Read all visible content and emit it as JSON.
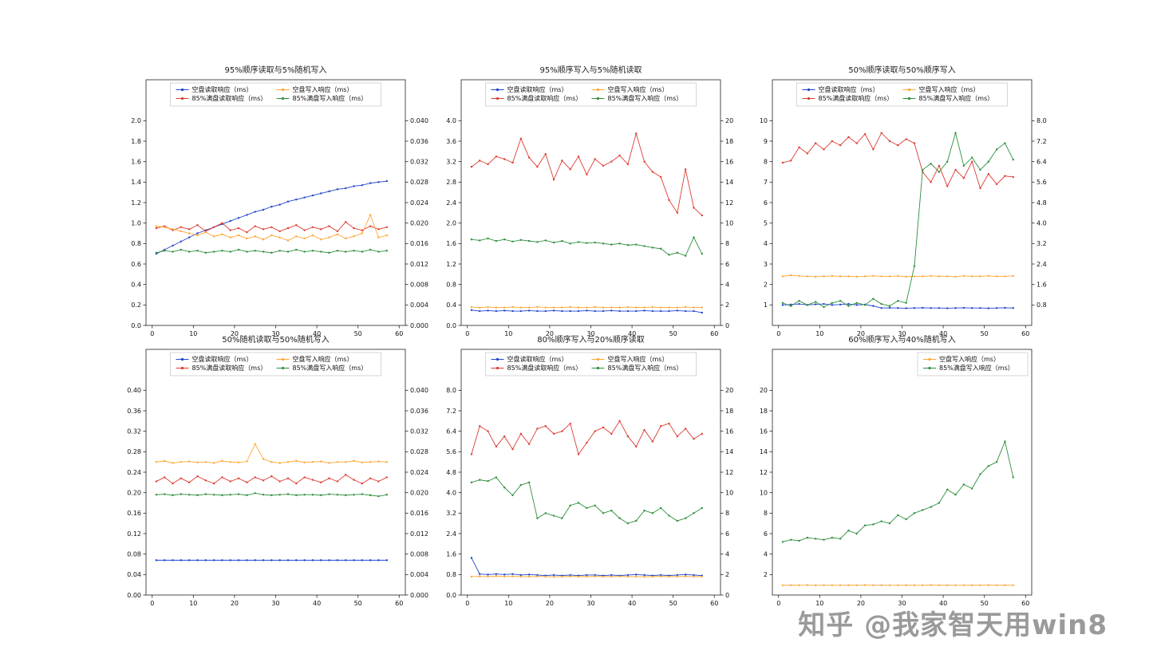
{
  "watermark": "知乎 @我家智天用win8",
  "colors": {
    "empty_read": "#2244cc",
    "empty_write": "#ffa632",
    "full_read": "#dd3c32",
    "full_write": "#2f8f3c",
    "axis": "#222222",
    "legend_border": "#cccccc"
  },
  "x_values": [
    1,
    3,
    5,
    7,
    9,
    11,
    13,
    15,
    17,
    19,
    21,
    23,
    25,
    27,
    29,
    31,
    33,
    35,
    37,
    39,
    41,
    43,
    45,
    47,
    49,
    51,
    53,
    55,
    57
  ],
  "xlim": [
    -1.5,
    61.5
  ],
  "xticks": [
    "0",
    "10",
    "20",
    "30",
    "40",
    "50",
    "60"
  ],
  "chart_data": [
    {
      "type": "line",
      "title": "95%顺序读取与5%随机写入",
      "x_range": [
        0,
        60
      ],
      "left_ticks": [
        "0.0",
        "0.2",
        "0.4",
        "0.6",
        "0.8",
        "1.0",
        "1.2",
        "1.4",
        "1.6",
        "1.8",
        "2.0"
      ],
      "left_max": 2.4,
      "right_ticks": [
        "0.000",
        "0.004",
        "0.008",
        "0.012",
        "0.016",
        "0.020",
        "0.024",
        "0.028",
        "0.032",
        "0.036",
        "0.040"
      ],
      "right_max": 0.048,
      "legend_loc": "top-center",
      "legend_columns": 2,
      "series": [
        {
          "name": "空盘读取响应（ms）",
          "color_key": "empty_read",
          "values": [
            0.7,
            0.74,
            0.78,
            0.82,
            0.86,
            0.9,
            0.93,
            0.96,
            0.99,
            1.02,
            1.05,
            1.08,
            1.11,
            1.13,
            1.16,
            1.18,
            1.21,
            1.23,
            1.25,
            1.27,
            1.29,
            1.31,
            1.33,
            1.34,
            1.36,
            1.37,
            1.39,
            1.4,
            1.41
          ]
        },
        {
          "name": "85%满盘读取响应（ms）",
          "color_key": "full_read",
          "values": [
            0.95,
            0.97,
            0.93,
            0.96,
            0.94,
            0.98,
            0.92,
            0.96,
            1.0,
            0.93,
            0.95,
            0.91,
            0.97,
            0.94,
            0.96,
            0.92,
            0.95,
            0.98,
            0.93,
            0.96,
            0.94,
            0.97,
            0.92,
            1.01,
            0.95,
            0.93,
            0.97,
            0.94,
            0.96
          ]
        },
        {
          "name": "空盘写入响应（ms）",
          "color_key": "empty_write",
          "values": [
            0.97,
            0.96,
            0.94,
            0.92,
            0.9,
            0.88,
            0.91,
            0.87,
            0.89,
            0.86,
            0.88,
            0.85,
            0.87,
            0.84,
            0.88,
            0.86,
            0.83,
            0.87,
            0.85,
            0.88,
            0.84,
            0.86,
            0.89,
            0.85,
            0.87,
            0.9,
            1.08,
            0.86,
            0.88
          ]
        },
        {
          "name": "85%满盘写入响应（ms）",
          "color_key": "full_write",
          "values": [
            0.71,
            0.73,
            0.72,
            0.74,
            0.72,
            0.73,
            0.71,
            0.72,
            0.73,
            0.72,
            0.74,
            0.72,
            0.73,
            0.72,
            0.71,
            0.73,
            0.72,
            0.74,
            0.72,
            0.73,
            0.72,
            0.71,
            0.73,
            0.72,
            0.73,
            0.72,
            0.74,
            0.72,
            0.73
          ]
        }
      ]
    },
    {
      "type": "line",
      "title": "95%顺序写入与5%随机读取",
      "x_range": [
        0,
        60
      ],
      "left_ticks": [
        "0.0",
        "0.4",
        "0.8",
        "1.2",
        "1.6",
        "2.0",
        "2.4",
        "2.8",
        "3.2",
        "3.6",
        "4.0"
      ],
      "left_max": 4.8,
      "right_ticks": [
        "0",
        "2",
        "4",
        "6",
        "8",
        "10",
        "12",
        "14",
        "16",
        "18",
        "20"
      ],
      "right_max": 24,
      "legend_loc": "top-center",
      "legend_columns": 2,
      "series": [
        {
          "name": "空盘读取响应（ms）",
          "color_key": "empty_read",
          "values": [
            0.3,
            0.28,
            0.29,
            0.28,
            0.29,
            0.28,
            0.28,
            0.29,
            0.28,
            0.28,
            0.29,
            0.28,
            0.28,
            0.28,
            0.29,
            0.28,
            0.28,
            0.29,
            0.28,
            0.28,
            0.28,
            0.29,
            0.28,
            0.28,
            0.28,
            0.29,
            0.28,
            0.28,
            0.25
          ]
        },
        {
          "name": "85%满盘读取响应（ms）",
          "color_key": "full_read",
          "values": [
            3.1,
            3.22,
            3.15,
            3.3,
            3.25,
            3.18,
            3.65,
            3.28,
            3.1,
            3.35,
            2.85,
            3.22,
            3.05,
            3.3,
            2.95,
            3.25,
            3.12,
            3.2,
            3.32,
            3.15,
            3.75,
            3.2,
            3.0,
            2.9,
            2.45,
            2.2,
            3.05,
            2.3,
            2.15
          ]
        },
        {
          "name": "空盘写入响应（ms）",
          "color_key": "empty_write",
          "values": [
            0.36,
            0.35,
            0.36,
            0.35,
            0.35,
            0.36,
            0.35,
            0.35,
            0.36,
            0.35,
            0.35,
            0.35,
            0.36,
            0.35,
            0.35,
            0.36,
            0.35,
            0.35,
            0.35,
            0.36,
            0.35,
            0.35,
            0.36,
            0.35,
            0.35,
            0.35,
            0.36,
            0.35,
            0.35
          ]
        },
        {
          "name": "85%满盘写入响应（ms）",
          "color_key": "full_write",
          "values": [
            1.68,
            1.66,
            1.7,
            1.65,
            1.68,
            1.64,
            1.67,
            1.65,
            1.63,
            1.66,
            1.62,
            1.65,
            1.6,
            1.63,
            1.61,
            1.62,
            1.6,
            1.58,
            1.6,
            1.57,
            1.58,
            1.55,
            1.52,
            1.5,
            1.38,
            1.42,
            1.36,
            1.72,
            1.4
          ]
        }
      ]
    },
    {
      "type": "line",
      "title": "50%顺序读取与50%顺序写入",
      "x_range": [
        0,
        60
      ],
      "left_ticks": [
        "1",
        "2",
        "3",
        "4",
        "5",
        "6",
        "7",
        "8",
        "9",
        "10"
      ],
      "left_max": 12,
      "right_ticks": [
        "0.8",
        "1.6",
        "2.4",
        "3.2",
        "4.0",
        "4.8",
        "5.6",
        "6.4",
        "7.2",
        "8.0"
      ],
      "right_max": 9.6,
      "legend_loc": "top-center",
      "legend_columns": 2,
      "series": [
        {
          "name": "空盘读取响应（ms）",
          "color_key": "empty_read",
          "values": [
            1.0,
            1.02,
            1.05,
            1.0,
            1.03,
            1.05,
            1.0,
            1.02,
            1.05,
            1.0,
            1.02,
            0.95,
            0.85,
            0.86,
            0.85,
            0.84,
            0.85,
            0.86,
            0.85,
            0.85,
            0.84,
            0.85,
            0.86,
            0.85,
            0.85,
            0.84,
            0.85,
            0.86,
            0.85
          ]
        },
        {
          "name": "85%满盘读取响应（ms）",
          "color_key": "full_read",
          "values": [
            7.95,
            8.05,
            8.7,
            8.4,
            8.9,
            8.6,
            9.0,
            8.8,
            9.2,
            8.9,
            9.35,
            8.6,
            9.4,
            9.0,
            8.8,
            9.1,
            8.9,
            7.5,
            7.0,
            7.8,
            6.8,
            7.6,
            7.2,
            8.0,
            6.7,
            7.4,
            6.9,
            7.3,
            7.25
          ]
        },
        {
          "name": "空盘写入响应（ms）",
          "color_key": "empty_write",
          "values": [
            2.4,
            2.45,
            2.42,
            2.4,
            2.38,
            2.4,
            2.42,
            2.4,
            2.4,
            2.38,
            2.4,
            2.42,
            2.4,
            2.4,
            2.42,
            2.38,
            2.4,
            2.4,
            2.42,
            2.4,
            2.4,
            2.38,
            2.42,
            2.4,
            2.4,
            2.42,
            2.4,
            2.4,
            2.42
          ]
        },
        {
          "name": "85%满盘写入响应（ms）",
          "color_key": "full_write",
          "values": [
            1.1,
            0.95,
            1.2,
            1.0,
            1.15,
            0.9,
            1.1,
            1.2,
            0.95,
            1.1,
            1.0,
            1.3,
            1.05,
            0.95,
            1.2,
            1.1,
            2.9,
            7.6,
            7.9,
            7.5,
            8.0,
            9.4,
            7.8,
            8.2,
            7.6,
            8.0,
            8.6,
            8.9,
            8.1
          ]
        }
      ]
    },
    {
      "type": "line",
      "title": "50%随机读取与50%随机写入",
      "x_range": [
        0,
        60
      ],
      "left_ticks": [
        "0.00",
        "0.04",
        "0.08",
        "0.12",
        "0.16",
        "0.20",
        "0.24",
        "0.28",
        "0.32",
        "0.36",
        "0.40"
      ],
      "left_max": 0.48,
      "right_ticks": [
        "0.000",
        "0.004",
        "0.008",
        "0.012",
        "0.016",
        "0.020",
        "0.024",
        "0.028",
        "0.032",
        "0.036",
        "0.040"
      ],
      "right_max": 0.048,
      "legend_loc": "top-center",
      "legend_columns": 2,
      "series": [
        {
          "name": "空盘读取响应（ms）",
          "color_key": "empty_read",
          "values": [
            0.068,
            0.068,
            0.068,
            0.068,
            0.068,
            0.068,
            0.068,
            0.068,
            0.068,
            0.068,
            0.068,
            0.068,
            0.068,
            0.068,
            0.068,
            0.068,
            0.068,
            0.068,
            0.068,
            0.068,
            0.068,
            0.068,
            0.068,
            0.068,
            0.068,
            0.068,
            0.068,
            0.068,
            0.068
          ]
        },
        {
          "name": "85%满盘读取响应（ms）",
          "color_key": "full_read",
          "values": [
            0.222,
            0.23,
            0.218,
            0.228,
            0.22,
            0.232,
            0.224,
            0.218,
            0.23,
            0.222,
            0.228,
            0.22,
            0.23,
            0.224,
            0.232,
            0.222,
            0.228,
            0.218,
            0.23,
            0.225,
            0.22,
            0.228,
            0.222,
            0.235,
            0.225,
            0.218,
            0.228,
            0.222,
            0.23
          ]
        },
        {
          "name": "空盘写入响应（ms）",
          "color_key": "empty_write",
          "values": [
            0.26,
            0.262,
            0.258,
            0.26,
            0.261,
            0.259,
            0.26,
            0.258,
            0.262,
            0.26,
            0.259,
            0.261,
            0.295,
            0.266,
            0.26,
            0.258,
            0.26,
            0.262,
            0.259,
            0.26,
            0.261,
            0.258,
            0.26,
            0.26,
            0.262,
            0.259,
            0.26,
            0.261,
            0.26
          ]
        },
        {
          "name": "85%满盘写入响应（ms）",
          "color_key": "full_write",
          "values": [
            0.196,
            0.197,
            0.195,
            0.197,
            0.196,
            0.195,
            0.197,
            0.196,
            0.195,
            0.196,
            0.197,
            0.195,
            0.199,
            0.196,
            0.195,
            0.196,
            0.197,
            0.195,
            0.196,
            0.196,
            0.195,
            0.197,
            0.196,
            0.195,
            0.196,
            0.197,
            0.195,
            0.193,
            0.196
          ]
        }
      ]
    },
    {
      "type": "line",
      "title": "80%顺序写入与20%顺序读取",
      "x_range": [
        0,
        60
      ],
      "left_ticks": [
        "0.0",
        "0.8",
        "1.6",
        "2.4",
        "3.2",
        "4.0",
        "4.8",
        "5.6",
        "6.4",
        "7.2",
        "8.0"
      ],
      "left_max": 9.6,
      "right_ticks": [
        "0",
        "2",
        "4",
        "6",
        "8",
        "10",
        "12",
        "14",
        "16",
        "18",
        "20"
      ],
      "right_max": 24,
      "legend_loc": "top-center",
      "legend_columns": 2,
      "series": [
        {
          "name": "空盘读取响应（ms）",
          "color_key": "empty_read",
          "values": [
            1.45,
            0.82,
            0.8,
            0.82,
            0.8,
            0.82,
            0.78,
            0.8,
            0.78,
            0.76,
            0.78,
            0.76,
            0.78,
            0.76,
            0.78,
            0.78,
            0.76,
            0.78,
            0.76,
            0.78,
            0.8,
            0.78,
            0.76,
            0.78,
            0.76,
            0.78,
            0.8,
            0.78,
            0.76
          ]
        },
        {
          "name": "85%满盘读取响应（ms）",
          "color_key": "full_read",
          "values": [
            5.5,
            6.6,
            6.4,
            5.8,
            6.2,
            5.7,
            6.3,
            5.9,
            6.5,
            6.6,
            6.3,
            6.4,
            6.7,
            5.5,
            5.95,
            6.4,
            6.55,
            6.3,
            6.8,
            6.2,
            5.8,
            6.45,
            6.0,
            6.6,
            6.7,
            6.2,
            6.5,
            6.1,
            6.3
          ]
        },
        {
          "name": "空盘写入响应（ms）",
          "color_key": "empty_write",
          "values": [
            0.72,
            0.73,
            0.72,
            0.74,
            0.72,
            0.73,
            0.72,
            0.72,
            0.73,
            0.72,
            0.71,
            0.72,
            0.73,
            0.72,
            0.72,
            0.73,
            0.72,
            0.72,
            0.73,
            0.72,
            0.72,
            0.71,
            0.72,
            0.73,
            0.72,
            0.72,
            0.73,
            0.72,
            0.72
          ]
        },
        {
          "name": "85%满盘写入响应（ms）",
          "color_key": "full_write",
          "values": [
            4.4,
            4.5,
            4.45,
            4.6,
            4.2,
            3.9,
            4.3,
            4.4,
            3.0,
            3.2,
            3.1,
            3.0,
            3.5,
            3.6,
            3.4,
            3.5,
            3.2,
            3.3,
            3.0,
            2.8,
            2.9,
            3.3,
            3.2,
            3.4,
            3.1,
            2.9,
            3.0,
            3.2,
            3.4
          ]
        }
      ]
    },
    {
      "type": "line",
      "title": "60%顺序写入与40%随机写入",
      "x_range": [
        0,
        60
      ],
      "left_ticks": [
        "2",
        "4",
        "6",
        "8",
        "10",
        "12",
        "14",
        "16",
        "18",
        "20"
      ],
      "left_max": 24,
      "right_ticks": [],
      "right_max": 0,
      "legend_loc": "top-right",
      "legend_columns": 1,
      "series": [
        {
          "name": "空盘写入响应（ms）",
          "color_key": "empty_write",
          "values": [
            0.95,
            0.96,
            0.95,
            0.97,
            0.95,
            0.96,
            0.95,
            0.95,
            0.96,
            0.95,
            0.97,
            0.95,
            0.96,
            0.95,
            0.95,
            0.96,
            0.95,
            0.95,
            0.97,
            0.95,
            0.96,
            0.95,
            0.95,
            0.96,
            0.95,
            0.97,
            0.95,
            0.96,
            0.95
          ]
        },
        {
          "name": "85%满盘写入响应（ms）",
          "color_key": "full_write",
          "values": [
            5.2,
            5.4,
            5.3,
            5.6,
            5.5,
            5.4,
            5.6,
            5.5,
            6.3,
            6.0,
            6.8,
            6.9,
            7.2,
            7.0,
            7.8,
            7.4,
            8.0,
            8.3,
            8.6,
            9.0,
            10.3,
            9.8,
            10.8,
            10.4,
            11.8,
            12.6,
            13.0,
            15.0,
            11.5
          ]
        }
      ]
    }
  ]
}
